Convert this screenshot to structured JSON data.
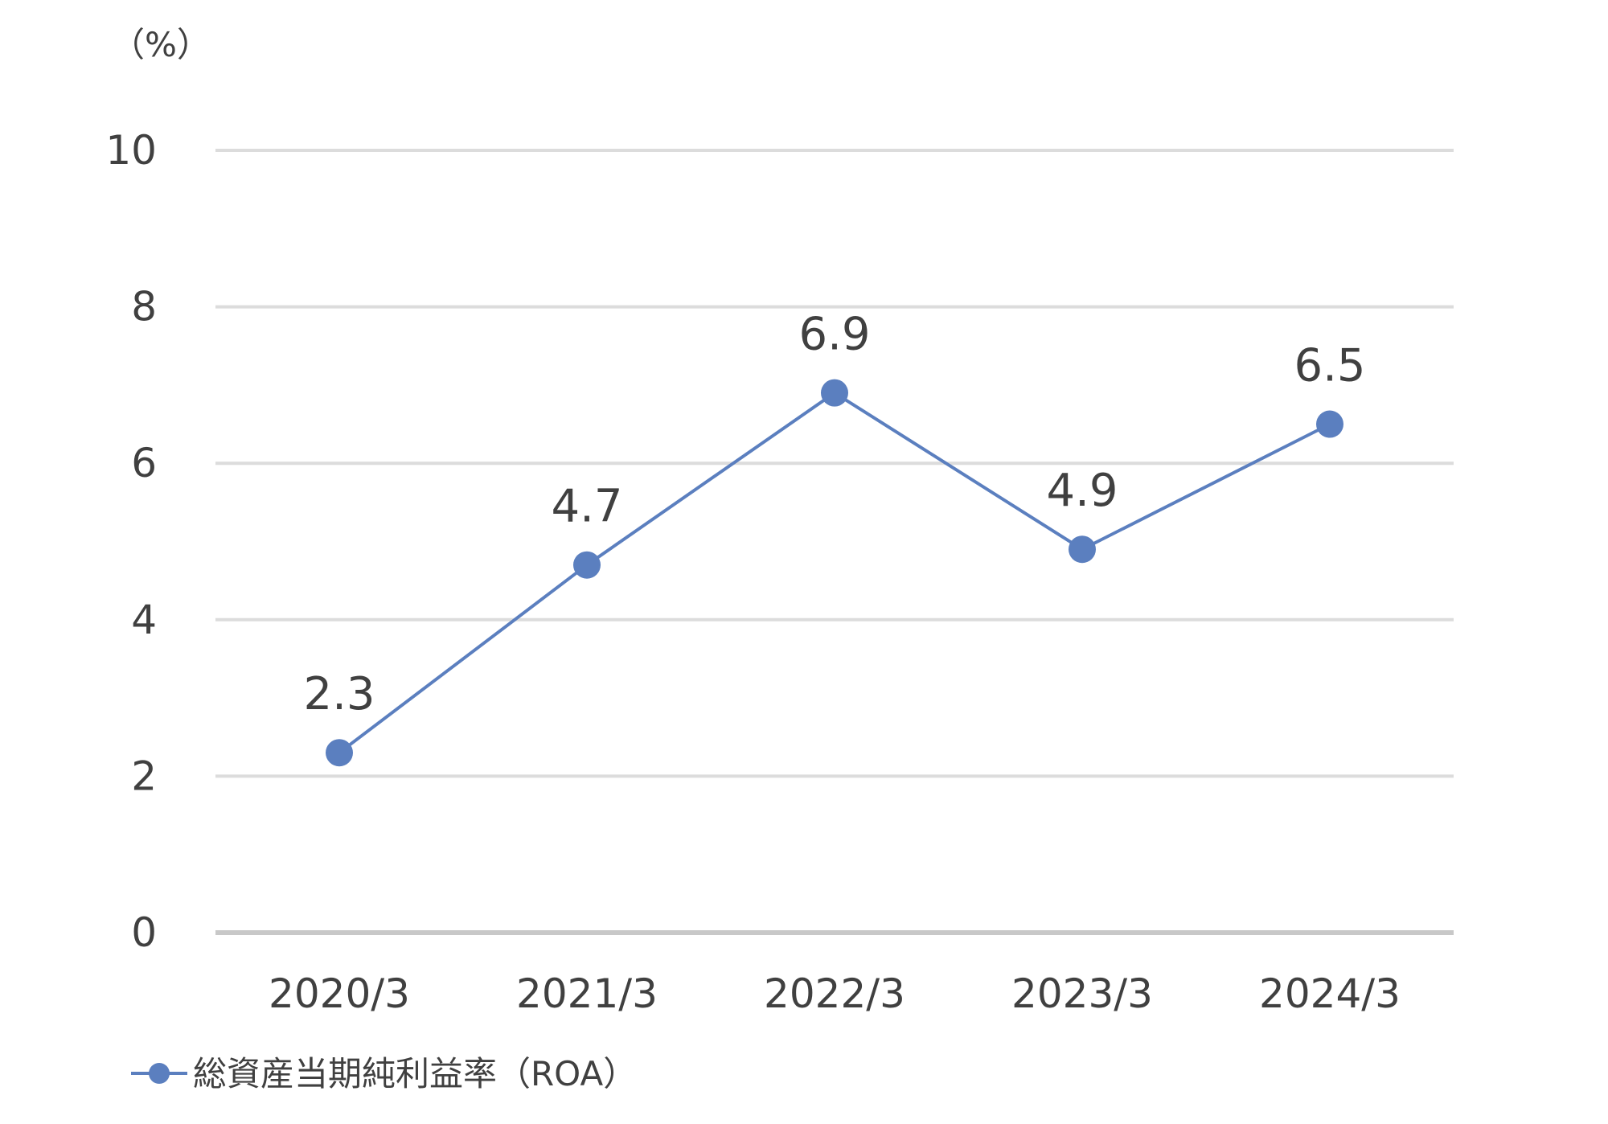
{
  "chart_data": {
    "type": "line",
    "unit_label": "（%）",
    "categories": [
      "2020/3",
      "2021/3",
      "2022/3",
      "2023/3",
      "2024/3"
    ],
    "series": [
      {
        "name": "総資産当期純利益率（ROA）",
        "values": [
          2.3,
          4.7,
          6.9,
          4.9,
          6.5
        ],
        "color": "#5b7fbf"
      }
    ],
    "data_labels": [
      "2.3",
      "4.7",
      "6.9",
      "4.9",
      "6.5"
    ],
    "y_ticks": [
      "0",
      "2",
      "4",
      "6",
      "8",
      "10"
    ],
    "ylim": [
      0,
      10
    ],
    "grid": true,
    "legend_position": "bottom-left"
  }
}
